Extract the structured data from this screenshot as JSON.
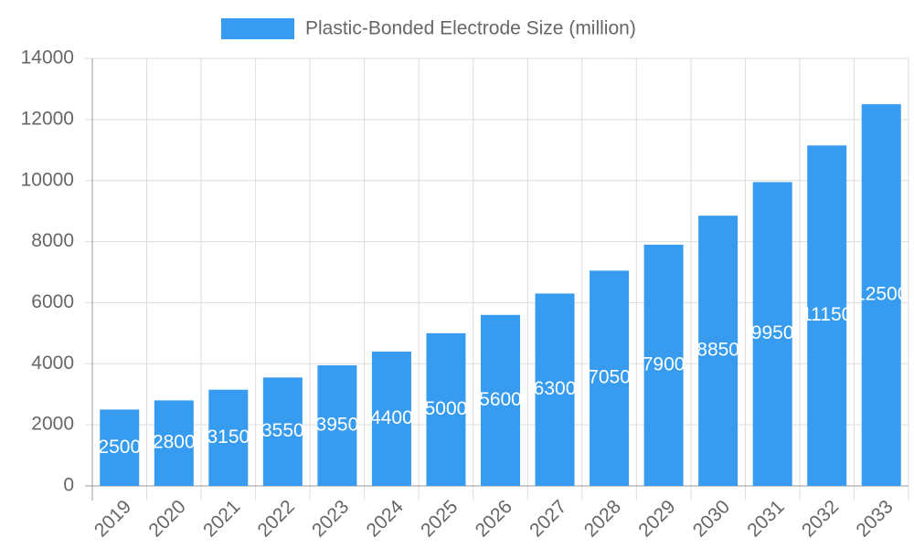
{
  "chart_data": {
    "type": "bar",
    "categories": [
      "2019",
      "2020",
      "2021",
      "2022",
      "2023",
      "2024",
      "2025",
      "2026",
      "2027",
      "2028",
      "2029",
      "2030",
      "2031",
      "2032",
      "2033"
    ],
    "series": [
      {
        "name": "Plastic-Bonded Electrode Size (million)",
        "color": "#379cf0",
        "values": [
          2500,
          2800,
          3150,
          3550,
          3950,
          4400,
          5000,
          5600,
          6300,
          7050,
          7900,
          8850,
          9950,
          11150,
          12500
        ]
      }
    ],
    "ylim": [
      0,
      14000
    ],
    "yticks": [
      0,
      2000,
      4000,
      6000,
      8000,
      10000,
      12000,
      14000
    ],
    "grid": true,
    "legend": "top"
  }
}
